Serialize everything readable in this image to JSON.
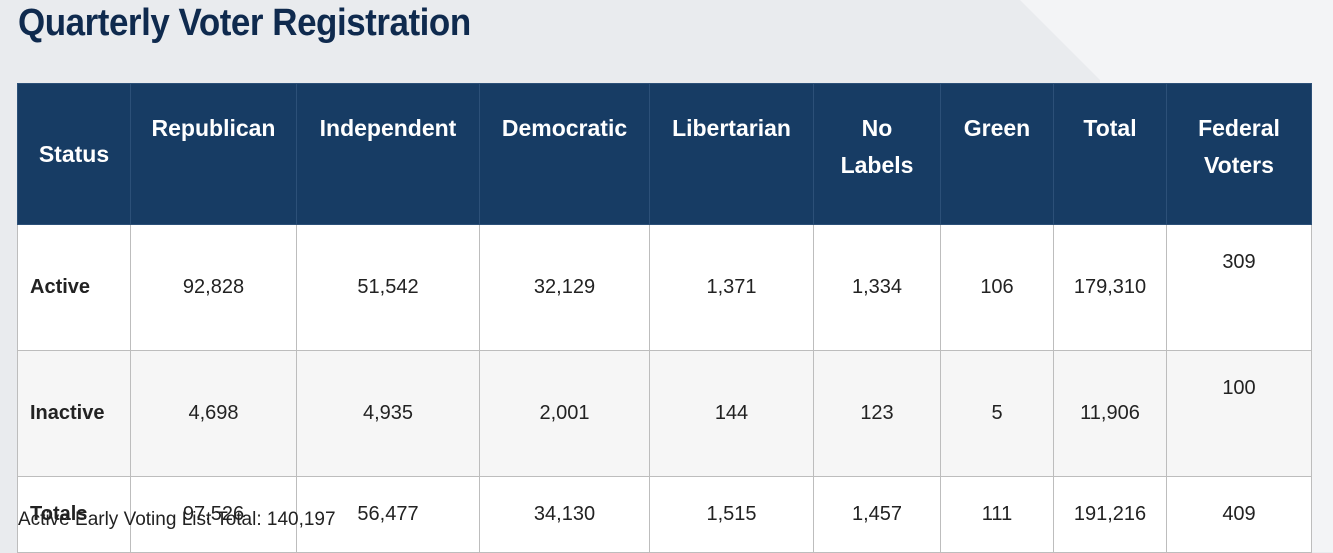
{
  "header": {
    "title": "Quarterly Voter Registration"
  },
  "table": {
    "columns": [
      "Status",
      "Republican",
      "Independent",
      "Democratic",
      "Libertarian",
      "No Labels",
      "Green",
      "Total",
      "Federal Voters"
    ],
    "rows": [
      [
        "Active",
        "92,828",
        "51,542",
        "32,129",
        "1,371",
        "1,334",
        "106",
        "179,310",
        "309"
      ],
      [
        "Inactive",
        "4,698",
        "4,935",
        "2,001",
        "144",
        "123",
        "5",
        "11,906",
        "100"
      ],
      [
        "Totals",
        "97,526",
        "56,477",
        "34,130",
        "1,515",
        "1,457",
        "111",
        "191,216",
        "409"
      ]
    ]
  },
  "footer": {
    "note": "Active Early Voting List Total: 140,197"
  }
}
